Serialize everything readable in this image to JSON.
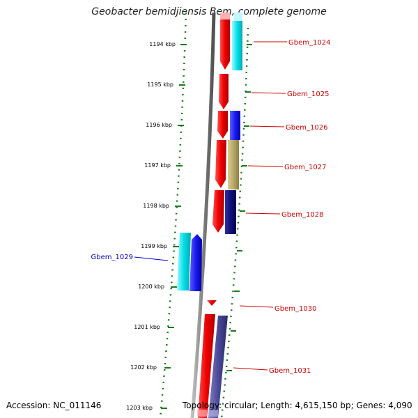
{
  "title": "Geobacter bemidjiensis Bem, complete genome",
  "footer": {
    "accession": "Accession: NC_011146",
    "topology": "Topology: circular; Length: 4,615,150 bp; Genes: 4,090"
  },
  "scale_unit": "kbp",
  "ticks": [
    {
      "label": "1194 kbp"
    },
    {
      "label": "1195 kbp"
    },
    {
      "label": "1196 kbp"
    },
    {
      "label": "1197 kbp"
    },
    {
      "label": "1198 kbp"
    },
    {
      "label": "1199 kbp"
    },
    {
      "label": "1200 kbp"
    },
    {
      "label": "1201 kbp"
    },
    {
      "label": "1202 kbp"
    },
    {
      "label": "1203 kbp"
    }
  ],
  "gene_labels": [
    {
      "text": "Gbem_1024",
      "color": "#cc0000"
    },
    {
      "text": "Gbem_1025",
      "color": "#cc0000"
    },
    {
      "text": "Gbem_1026",
      "color": "#cc0000"
    },
    {
      "text": "Gbem_1027",
      "color": "#cc0000"
    },
    {
      "text": "Gbem_1028",
      "color": "#cc0000"
    },
    {
      "text": "Gbem_1029",
      "color": "#0000cc"
    },
    {
      "text": "Gbem_1030",
      "color": "#cc0000"
    },
    {
      "text": "Gbem_1031",
      "color": "#cc0000"
    }
  ],
  "colors": {
    "forward_gene": "#ee0000",
    "cyan_track": "#00e0e8",
    "blue_track": "#1a1aee",
    "olive_track": "#b8aa6a",
    "navy_track": "#10107a",
    "slate_track": "#4a4a9a",
    "backbone": "#808080",
    "tick_green": "#1a7a1a"
  }
}
